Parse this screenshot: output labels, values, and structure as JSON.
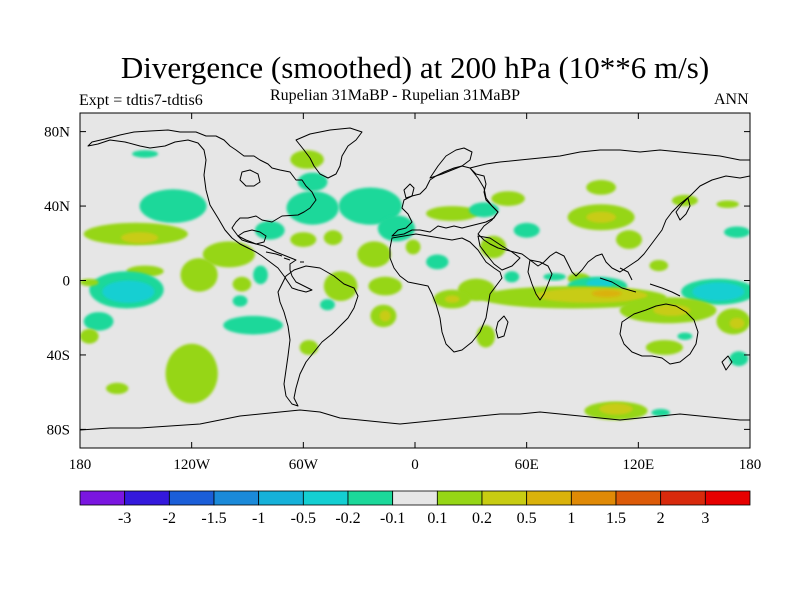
{
  "chart_data": {
    "type": "heatmap",
    "title": "Divergence (smoothed) at 200 hPa (10**6 m/s)",
    "experiment_label": "Expt = tdtis7-tdtis6",
    "subtitle": "Rupelian  31MaBP - Rupelian  31MaBP",
    "period_label": "ANN",
    "x_axis": {
      "range": [
        -180,
        180
      ],
      "ticks": [
        -180,
        -120,
        -60,
        0,
        60,
        120,
        180
      ],
      "tick_labels": [
        "180",
        "120W",
        "60W",
        "0",
        "60E",
        "120E",
        "180"
      ]
    },
    "y_axis": {
      "range": [
        -90,
        90
      ],
      "ticks": [
        80,
        40,
        0,
        -40,
        -80
      ],
      "tick_labels": [
        "80N",
        "40N",
        "0",
        "40S",
        "80S"
      ]
    },
    "colorbar": {
      "labels": [
        "-3",
        "-2",
        "-1.5",
        "-1",
        "-0.5",
        "-0.2",
        "-0.1",
        "0.1",
        "0.2",
        "0.5",
        "1",
        "1.5",
        "2",
        "3"
      ],
      "colors": [
        "#7a16e0",
        "#3419dc",
        "#1b5ed8",
        "#1b8ad9",
        "#16b1d9",
        "#14cfd2",
        "#1cd89a",
        "#e6e6e6",
        "#96d616",
        "#c8cc12",
        "#dab20a",
        "#e08a06",
        "#dc5a08",
        "#d82a0c",
        "#e60000"
      ]
    },
    "regions": [
      {
        "level": "-0.1",
        "lon": -145,
        "lat": 68,
        "rlon": 7,
        "rlat": 2
      },
      {
        "level": "0.1",
        "lon": -58,
        "lat": 65,
        "rlon": 9,
        "rlat": 5
      },
      {
        "level": "-0.1",
        "lon": -55,
        "lat": 53,
        "rlon": 8,
        "rlat": 5
      },
      {
        "level": "-0.1",
        "lon": -130,
        "lat": 40,
        "rlon": 18,
        "rlat": 9
      },
      {
        "level": "-0.1",
        "lon": -55,
        "lat": 39,
        "rlon": 14,
        "rlat": 9
      },
      {
        "level": "-0.1",
        "lon": -24,
        "lat": 40,
        "rlon": 17,
        "rlat": 10
      },
      {
        "level": "-0.1",
        "lon": -10,
        "lat": 28,
        "rlon": 10,
        "rlat": 7
      },
      {
        "level": "0.1",
        "lon": 20,
        "lat": 36,
        "rlon": 14,
        "rlat": 4
      },
      {
        "level": "-0.1",
        "lon": 37,
        "lat": 38,
        "rlon": 8,
        "rlat": 4
      },
      {
        "level": "0.1",
        "lon": 50,
        "lat": 44,
        "rlon": 9,
        "rlat": 4
      },
      {
        "level": "0.1",
        "lon": 100,
        "lat": 50,
        "rlon": 8,
        "rlat": 4
      },
      {
        "level": "0.1",
        "lon": 145,
        "lat": 43,
        "rlon": 7,
        "rlat": 3
      },
      {
        "level": "0.1",
        "lon": 168,
        "lat": 41,
        "rlon": 6,
        "rlat": 2
      },
      {
        "level": "0.1",
        "lon": -150,
        "lat": 25,
        "rlon": 28,
        "rlat": 6
      },
      {
        "level": "0.2",
        "lon": -148,
        "lat": 23,
        "rlon": 10,
        "rlat": 3
      },
      {
        "level": "0.1",
        "lon": -100,
        "lat": 14,
        "rlon": 14,
        "rlat": 7
      },
      {
        "level": "-0.1",
        "lon": -78,
        "lat": 27,
        "rlon": 8,
        "rlat": 5
      },
      {
        "level": "0.1",
        "lon": -60,
        "lat": 22,
        "rlon": 7,
        "rlat": 4
      },
      {
        "level": "0.1",
        "lon": -44,
        "lat": 23,
        "rlon": 5,
        "rlat": 4
      },
      {
        "level": "0.1",
        "lon": -22,
        "lat": 14,
        "rlon": 9,
        "rlat": 7
      },
      {
        "level": "0.1",
        "lon": -1,
        "lat": 18,
        "rlon": 4,
        "rlat": 4
      },
      {
        "level": "-0.1",
        "lon": 12,
        "lat": 10,
        "rlon": 6,
        "rlat": 4
      },
      {
        "level": "0.1",
        "lon": 42,
        "lat": 18,
        "rlon": 7,
        "rlat": 6
      },
      {
        "level": "-0.1",
        "lon": 60,
        "lat": 27,
        "rlon": 7,
        "rlat": 4
      },
      {
        "level": "0.1",
        "lon": 100,
        "lat": 34,
        "rlon": 18,
        "rlat": 7
      },
      {
        "level": "0.2",
        "lon": 100,
        "lat": 34,
        "rlon": 8,
        "rlat": 3
      },
      {
        "level": "-0.1",
        "lon": 173,
        "lat": 26,
        "rlon": 7,
        "rlat": 3
      },
      {
        "level": "0.1",
        "lon": -145,
        "lat": 5,
        "rlon": 10,
        "rlat": 3
      },
      {
        "level": "0.1",
        "lon": 115,
        "lat": 22,
        "rlon": 7,
        "rlat": 5
      },
      {
        "level": "0.1",
        "lon": 131,
        "lat": 8,
        "rlon": 5,
        "rlat": 3
      },
      {
        "level": "-0.1",
        "lon": -155,
        "lat": -5,
        "rlon": 20,
        "rlat": 10
      },
      {
        "level": "-0.2",
        "lon": -154,
        "lat": -6,
        "rlon": 14,
        "rlat": 6
      },
      {
        "level": "0.1",
        "lon": -175,
        "lat": -1,
        "rlon": 5,
        "rlat": 2
      },
      {
        "level": "0.1",
        "lon": -116,
        "lat": 3,
        "rlon": 10,
        "rlat": 9
      },
      {
        "level": "-0.1",
        "lon": -83,
        "lat": 3,
        "rlon": 4,
        "rlat": 5
      },
      {
        "level": "0.1",
        "lon": -93,
        "lat": -2,
        "rlon": 5,
        "rlat": 4
      },
      {
        "level": "-0.1",
        "lon": -94,
        "lat": -11,
        "rlon": 4,
        "rlat": 3
      },
      {
        "level": "0.1",
        "lon": -40,
        "lat": -3,
        "rlon": 9,
        "rlat": 8
      },
      {
        "level": "-0.1",
        "lon": -47,
        "lat": -13,
        "rlon": 4,
        "rlat": 3
      },
      {
        "level": "0.1",
        "lon": -16,
        "lat": -3,
        "rlon": 9,
        "rlat": 5
      },
      {
        "level": "0.1",
        "lon": 33,
        "lat": -5,
        "rlon": 10,
        "rlat": 6
      },
      {
        "level": "-0.1",
        "lon": 52,
        "lat": 2,
        "rlon": 4,
        "rlat": 3
      },
      {
        "level": "-0.1",
        "lon": 75,
        "lat": 2,
        "rlon": 6,
        "rlat": 2
      },
      {
        "level": "0.1",
        "lon": 88,
        "lat": 1,
        "rlon": 6,
        "rlat": 3
      },
      {
        "level": "-0.1",
        "lon": 98,
        "lat": -3,
        "rlon": 16,
        "rlat": 5
      },
      {
        "level": "-0.2",
        "lon": 99,
        "lat": -2,
        "rlon": 7,
        "rlat": 3
      },
      {
        "level": "-0.1",
        "lon": 163,
        "lat": -6,
        "rlon": 20,
        "rlat": 7
      },
      {
        "level": "-0.2",
        "lon": 163,
        "lat": -6,
        "rlon": 14,
        "rlat": 5
      },
      {
        "level": "0.1",
        "lon": 20,
        "lat": -10,
        "rlon": 10,
        "rlat": 5
      },
      {
        "level": "0.2",
        "lon": 20,
        "lat": -10,
        "rlon": 4,
        "rlat": 2
      },
      {
        "level": "0.1",
        "lon": 85,
        "lat": -9,
        "rlon": 50,
        "rlat": 6
      },
      {
        "level": "0.2",
        "lon": 95,
        "lat": -8,
        "rlon": 30,
        "rlat": 4
      },
      {
        "level": "0.5",
        "lon": 103,
        "lat": -7,
        "rlon": 8,
        "rlat": 2
      },
      {
        "level": "0.1",
        "lon": 136,
        "lat": -16,
        "rlon": 26,
        "rlat": 7
      },
      {
        "level": "0.2",
        "lon": 138,
        "lat": -16,
        "rlon": 10,
        "rlat": 3
      },
      {
        "level": "0.1",
        "lon": 171,
        "lat": -22,
        "rlon": 9,
        "rlat": 7
      },
      {
        "level": "0.2",
        "lon": 173,
        "lat": -23,
        "rlon": 4,
        "rlat": 3
      },
      {
        "level": "0.1",
        "lon": -17,
        "lat": -19,
        "rlon": 7,
        "rlat": 6
      },
      {
        "level": "0.2",
        "lon": -16,
        "lat": -19,
        "rlon": 3,
        "rlat": 3
      },
      {
        "level": "-0.1",
        "lon": -170,
        "lat": -22,
        "rlon": 8,
        "rlat": 5
      },
      {
        "level": "0.1",
        "lon": -175,
        "lat": -30,
        "rlon": 5,
        "rlat": 4
      },
      {
        "level": "-0.1",
        "lon": -87,
        "lat": -24,
        "rlon": 16,
        "rlat": 5
      },
      {
        "level": "0.1",
        "lon": -57,
        "lat": -36,
        "rlon": 5,
        "rlat": 4
      },
      {
        "level": "0.1",
        "lon": 38,
        "lat": -30,
        "rlon": 5,
        "rlat": 6
      },
      {
        "level": "0.1",
        "lon": 134,
        "lat": -36,
        "rlon": 10,
        "rlat": 4
      },
      {
        "level": "-0.1",
        "lon": 145,
        "lat": -30,
        "rlon": 4,
        "rlat": 2
      },
      {
        "level": "-0.1",
        "lon": 174,
        "lat": -42,
        "rlon": 5,
        "rlat": 4
      },
      {
        "level": "0.1",
        "lon": -120,
        "lat": -50,
        "rlon": 14,
        "rlat": 16
      },
      {
        "level": "0.1",
        "lon": -160,
        "lat": -58,
        "rlon": 6,
        "rlat": 3
      },
      {
        "level": "0.1",
        "lon": 108,
        "lat": -70,
        "rlon": 17,
        "rlat": 5
      },
      {
        "level": "0.2",
        "lon": 108,
        "lat": -69,
        "rlon": 9,
        "rlat": 3
      },
      {
        "level": "-0.1",
        "lon": 132,
        "lat": -71,
        "rlon": 5,
        "rlat": 2
      }
    ],
    "plot_type": "filled contour map (cylindrical equidistant)"
  }
}
